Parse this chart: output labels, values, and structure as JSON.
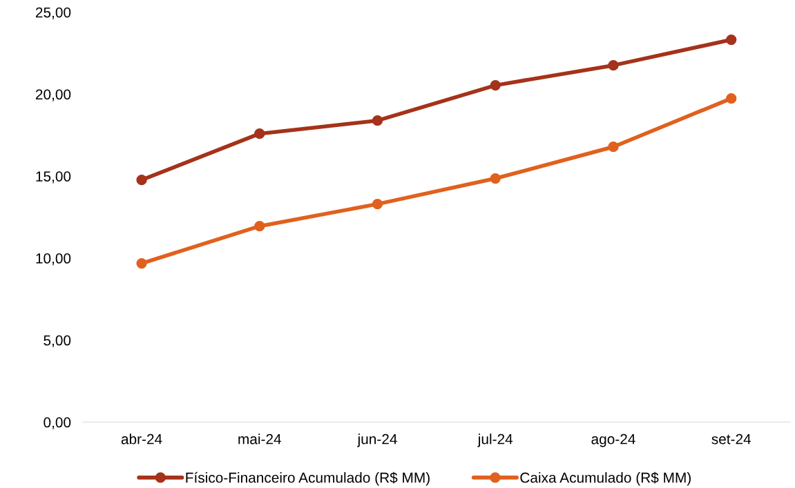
{
  "chart_data": {
    "type": "line",
    "categories": [
      "abr-24",
      "mai-24",
      "jun-24",
      "jul-24",
      "ago-24",
      "set-24"
    ],
    "series": [
      {
        "name": "Físico-Financeiro Acumulado (R$ MM)",
        "color": "#a5321a",
        "values": [
          14.77,
          17.59,
          18.39,
          20.54,
          21.76,
          23.32
        ]
      },
      {
        "name": "Caixa Acumulado (R$ MM)",
        "color": "#e0611e",
        "values": [
          9.68,
          11.95,
          13.3,
          14.86,
          16.79,
          19.74
        ]
      }
    ],
    "ylim": [
      0,
      25
    ],
    "yticks": [
      {
        "value": 0,
        "label": "0,00"
      },
      {
        "value": 5,
        "label": "5,00"
      },
      {
        "value": 10,
        "label": "10,00"
      },
      {
        "value": 15,
        "label": "15,00"
      },
      {
        "value": 20,
        "label": "20,00"
      },
      {
        "value": 25,
        "label": "25,00"
      }
    ],
    "grid": false,
    "legend": "bottom",
    "marker": "circle",
    "line_style": "solid"
  }
}
